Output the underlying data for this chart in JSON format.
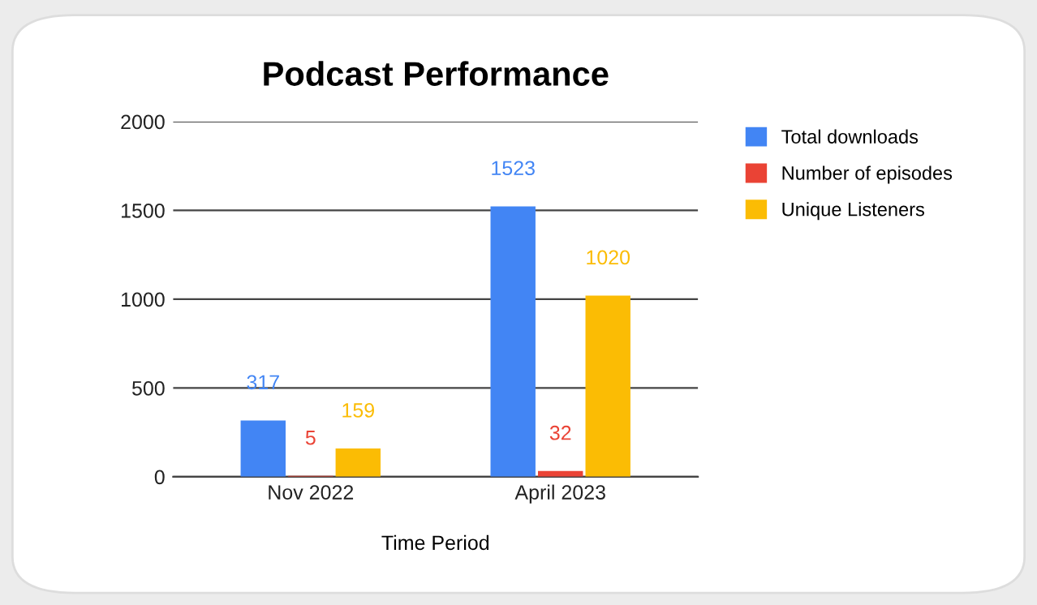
{
  "chart_data": {
    "type": "bar",
    "title": "Podcast Performance",
    "xlabel": "Time Period",
    "categories": [
      "Nov 2022",
      "April 2023"
    ],
    "series": [
      {
        "name": "Total downloads",
        "color": "#4285f4",
        "values": [
          317,
          1523
        ]
      },
      {
        "name": "Number of episodes",
        "color": "#ea4335",
        "values": [
          5,
          32
        ]
      },
      {
        "name": "Unique Listeners",
        "color": "#fbbc04",
        "values": [
          159,
          1020
        ]
      }
    ],
    "ylim": [
      0,
      2000
    ],
    "yticks": [
      0,
      500,
      1000,
      1500,
      2000
    ],
    "grid": "y",
    "legend": "top right",
    "data_labels": true
  }
}
